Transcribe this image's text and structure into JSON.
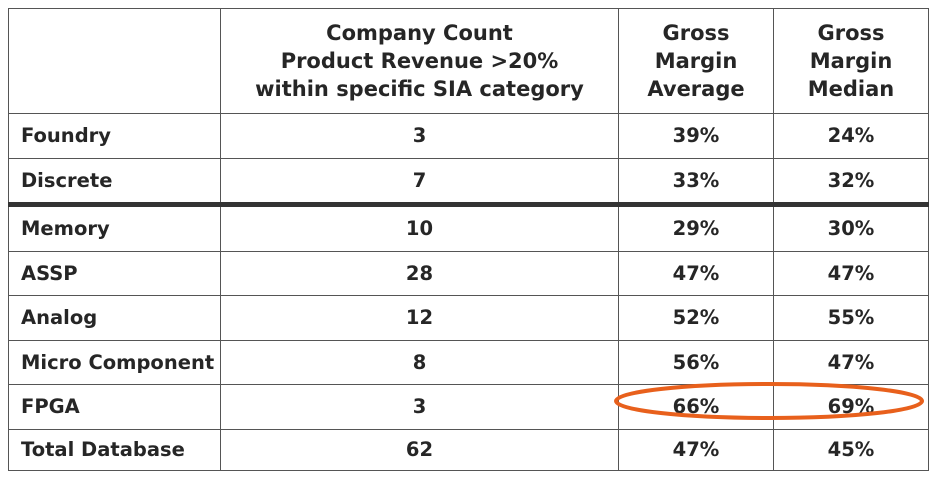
{
  "chart_data": {
    "type": "table",
    "columns": [
      "",
      [
        "Company Count",
        "Product Revenue >20%",
        "within specific SIA category"
      ],
      [
        "Gross",
        "Margin",
        "Average"
      ],
      [
        "Gross",
        "Margin",
        "Median"
      ]
    ],
    "rows": [
      {
        "category": "Foundry",
        "count": "3",
        "avg": "39%",
        "median": "24%"
      },
      {
        "category": "Discrete",
        "count": "7",
        "avg": "33%",
        "median": "32%"
      },
      {
        "category": "Memory",
        "count": "10",
        "avg": "29%",
        "median": "30%"
      },
      {
        "category": "ASSP",
        "count": "28",
        "avg": "47%",
        "median": "47%"
      },
      {
        "category": "Analog",
        "count": "12",
        "avg": "52%",
        "median": "55%"
      },
      {
        "category": "Micro Component",
        "count": "8",
        "avg": "56%",
        "median": "47%"
      },
      {
        "category": "FPGA",
        "count": "3",
        "avg": "66%",
        "median": "69%"
      },
      {
        "category": "Total Database",
        "count": "62",
        "avg": "47%",
        "median": "45%"
      }
    ],
    "highlighted_row": "FPGA",
    "highlight_color": "#e8601c",
    "border_color": "#555555"
  }
}
